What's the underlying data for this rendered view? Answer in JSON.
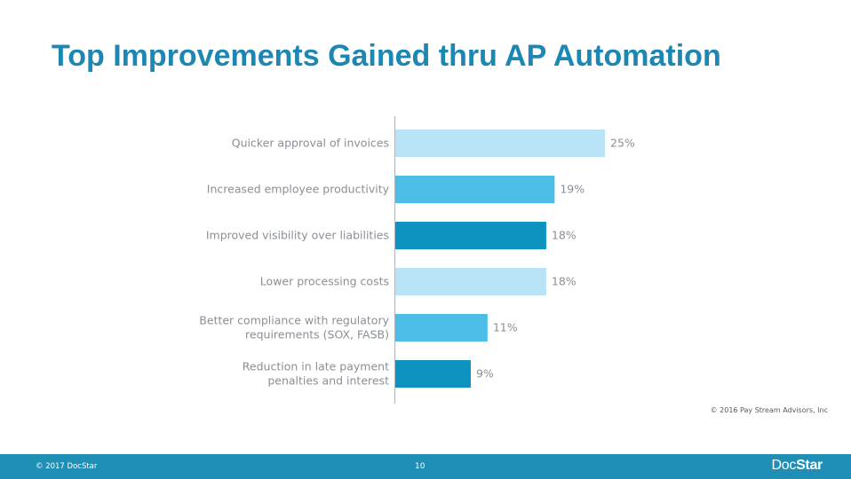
{
  "slide": {
    "title": "Top Improvements Gained thru AP Automation",
    "source": "© 2016 Pay Stream Advisors, Inc"
  },
  "footer": {
    "copyright": "© 2017 DocStar",
    "page_number": "10",
    "logo_part1": "Doc",
    "logo_part2": "Star"
  },
  "colors": {
    "title": "#1d87b4",
    "footer": "#1f8fb5",
    "bar_light": "#b9e4f8",
    "bar_medium": "#4cbde6",
    "bar_dark": "#0e93c1"
  },
  "chart_data": {
    "type": "bar",
    "orientation": "horizontal",
    "categories": [
      [
        "Quicker approval of invoices"
      ],
      [
        "Increased employee productivity"
      ],
      [
        "Improved visibility over liabilities"
      ],
      [
        "Lower processing costs"
      ],
      [
        "Better compliance with regulatory",
        "requirements (SOX, FASB)"
      ],
      [
        "Reduction in late payment",
        "penalties and interest"
      ]
    ],
    "values": [
      25,
      19,
      18,
      18,
      11,
      9
    ],
    "value_labels": [
      "25%",
      "19%",
      "18%",
      "18%",
      "11%",
      "9%"
    ],
    "bar_colors": [
      "#b9e4f8",
      "#4cbde6",
      "#0e93c1",
      "#b9e4f8",
      "#4cbde6",
      "#0e93c1"
    ],
    "value_unit": "%",
    "title": "",
    "xlabel": "",
    "ylabel": "",
    "xlim": [
      0,
      25
    ],
    "grid": false,
    "legend": "none"
  }
}
